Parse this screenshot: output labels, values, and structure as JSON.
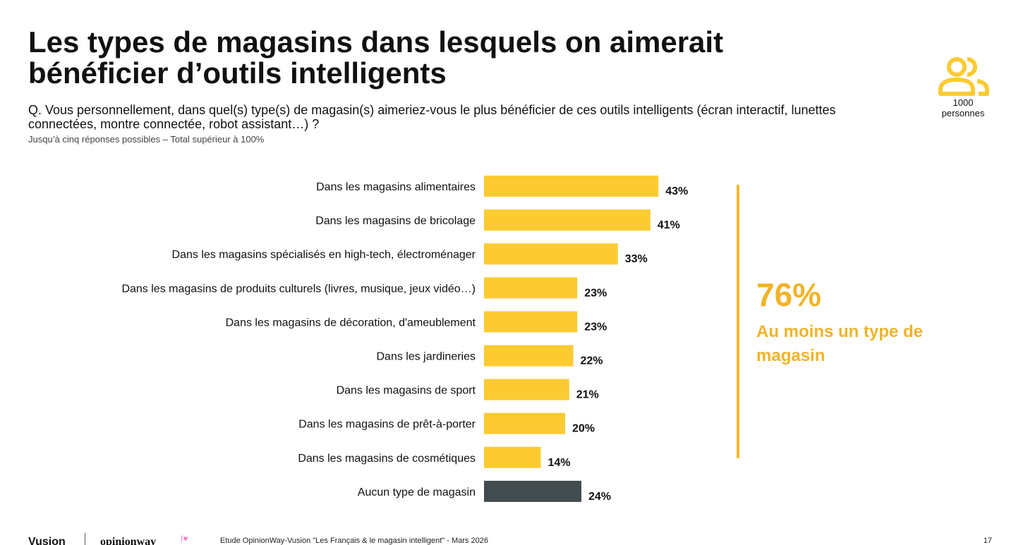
{
  "header": {
    "title": "Les types de magasins dans lesquels on aimerait bénéficier d’outils intelligents",
    "question": "Q. Vous personnellement, dans quel(s) type(s) de magasin(s) aimeriez-vous le plus bénéficier de ces outils intelligents (écran interactif, lunettes connectées, montre connectée, robot assistant…) ?",
    "note": "Jusqu’à cinq réponses possibles – Total supérieur à 100%"
  },
  "sample": {
    "icon": "people-icon",
    "count": "1000",
    "unit": "personnes"
  },
  "chart_data": {
    "type": "bar",
    "orientation": "horizontal",
    "title": "",
    "xlabel": "",
    "ylabel": "",
    "xlim": [
      0,
      50
    ],
    "grid": false,
    "categories": [
      "Dans les magasins alimentaires",
      "Dans les magasins de bricolage",
      "Dans les magasins spécialisés en high-tech, électroménager",
      "Dans les magasins de produits culturels (livres, musique, jeux vidéo…)",
      "Dans les magasins de décoration, d'ameublement",
      "Dans les jardineries",
      "Dans les magasins de sport",
      "Dans les magasins de prêt-à-porter",
      "Dans les magasins de cosmétiques",
      "Aucun type de magasin"
    ],
    "values": [
      43,
      41,
      33,
      23,
      23,
      22,
      21,
      20,
      14,
      24
    ],
    "value_labels": [
      "43%",
      "41%",
      "33%",
      "23%",
      "23%",
      "22%",
      "21%",
      "20%",
      "14%",
      "24%"
    ],
    "bar_colors": [
      "#FCCB32",
      "#FCCB32",
      "#FCCB32",
      "#FCCB32",
      "#FCCB32",
      "#FCCB32",
      "#FCCB32",
      "#FCCB32",
      "#FCCB32",
      "#424B4D"
    ]
  },
  "summary": {
    "value": "76%",
    "label": "Au moins un type de magasin",
    "color": "#F0B429"
  },
  "footer": {
    "brand": "Vusion",
    "partner": "opinionway",
    "heart": "I♥",
    "source": "Etude OpinionWay-Vusion \"Les Français & le magasin intelligent\" - Mars 2026",
    "page": "17"
  },
  "colors": {
    "accent": "#FCCB32",
    "dark": "#424B4D",
    "summary": "#F0B429"
  }
}
